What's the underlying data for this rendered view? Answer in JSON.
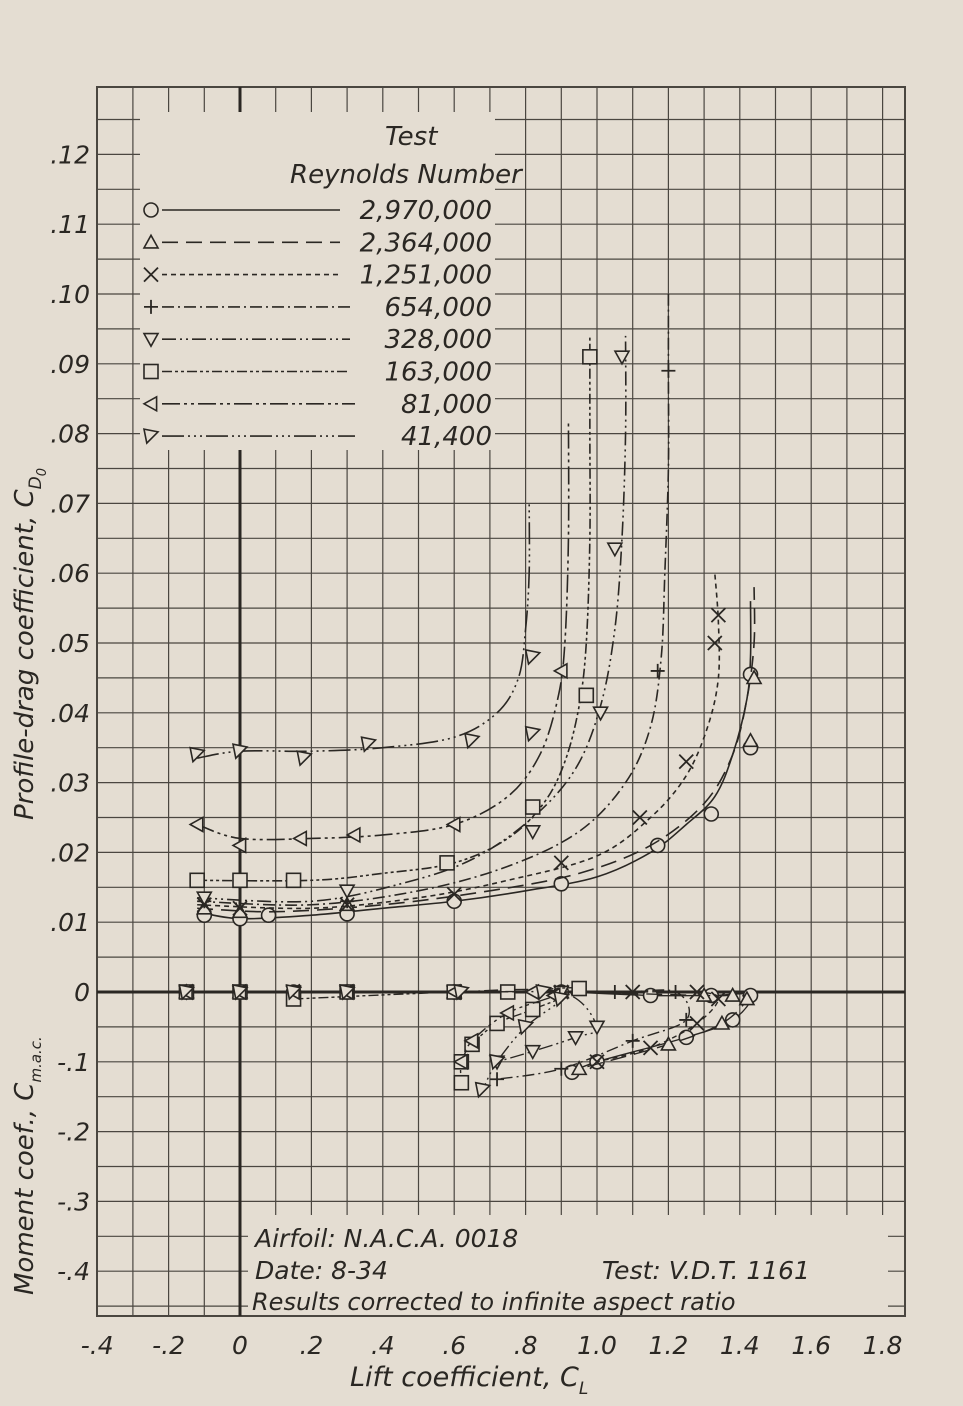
{
  "colors": {
    "paper": "#e4ddd2",
    "grid": "#4a4640",
    "ink": "#2a2723"
  },
  "chart_data": {
    "type": "line",
    "xlabel": "Lift coefficient, C",
    "xlabel_sub": "L",
    "ylabel_drag": "Profile-drag coefficient, C",
    "ylabel_drag_sub": "D",
    "ylabel_drag_sub2": "0",
    "ylabel_moment": "Moment coef., C",
    "ylabel_moment_sub": "m.a.c.",
    "xlim": [
      -0.4,
      1.8
    ],
    "ylim_drag": [
      0,
      0.125
    ],
    "ylim_moment": [
      -0.45,
      0
    ],
    "grid": true,
    "x_ticks": [
      "-.4",
      "-.2",
      "0",
      ".2",
      ".4",
      ".6",
      ".8",
      "1.0",
      "1.2",
      "1.4",
      "1.6",
      "1.8"
    ],
    "y_ticks_drag": [
      ".01",
      ".02",
      ".03",
      ".04",
      ".05",
      ".06",
      ".07",
      ".08",
      ".09",
      ".10",
      ".11",
      ".12"
    ],
    "y_ticks_moment": [
      "0",
      "-.1",
      "-.2",
      "-.3",
      "-.4"
    ],
    "legend": {
      "placement": "top-left",
      "title1": "Test",
      "title2": "Reynolds Number",
      "entries": [
        "2,970,000",
        "2,364,000",
        "1,251,000",
        "654,000",
        "328,000",
        "163,000",
        "81,000",
        "41,400"
      ]
    },
    "annotations": {
      "airfoil": "Airfoil: N.A.C.A. 0018",
      "date": "Date:  8-34",
      "test": "Test: V.D.T. 1161",
      "note": "Results corrected to infinite aspect ratio"
    },
    "series": [
      {
        "name": "2,970,000",
        "marker": "circle",
        "dash": "",
        "drag_curve": [
          [
            -0.12,
            0.0115
          ],
          [
            0,
            0.0105
          ],
          [
            0.2,
            0.011
          ],
          [
            0.4,
            0.012
          ],
          [
            0.6,
            0.013
          ],
          [
            0.8,
            0.0145
          ],
          [
            1.0,
            0.0165
          ],
          [
            1.15,
            0.02
          ],
          [
            1.25,
            0.024
          ],
          [
            1.33,
            0.028
          ],
          [
            1.38,
            0.034
          ],
          [
            1.42,
            0.042
          ],
          [
            1.43,
            0.048
          ],
          [
            1.43,
            0.056
          ]
        ],
        "drag_points": [
          [
            -0.1,
            0.011
          ],
          [
            0,
            0.0105
          ],
          [
            0.08,
            0.011
          ],
          [
            0.3,
            0.0112
          ],
          [
            0.6,
            0.013
          ],
          [
            0.9,
            0.0155
          ],
          [
            1.17,
            0.021
          ],
          [
            1.32,
            0.0255
          ],
          [
            1.43,
            0.035
          ],
          [
            1.43,
            0.0455
          ]
        ],
        "moment_points": [
          [
            -0.15,
            0
          ],
          [
            0,
            0
          ],
          [
            0.15,
            0
          ],
          [
            0.3,
            0
          ],
          [
            0.6,
            0
          ],
          [
            0.9,
            0
          ],
          [
            1.15,
            -0.005
          ],
          [
            1.32,
            -0.005
          ],
          [
            1.43,
            -0.005
          ],
          [
            1.38,
            -0.04
          ],
          [
            1.25,
            -0.065
          ],
          [
            1.0,
            -0.1
          ],
          [
            0.93,
            -0.115
          ]
        ]
      },
      {
        "name": "2,364,000",
        "marker": "triangle-up",
        "dash": "16 8",
        "drag_curve": [
          [
            -0.12,
            0.012
          ],
          [
            0.1,
            0.0115
          ],
          [
            0.4,
            0.0125
          ],
          [
            0.7,
            0.0145
          ],
          [
            0.95,
            0.017
          ],
          [
            1.15,
            0.021
          ],
          [
            1.3,
            0.027
          ],
          [
            1.38,
            0.034
          ],
          [
            1.42,
            0.042
          ],
          [
            1.44,
            0.05
          ],
          [
            1.44,
            0.058
          ]
        ],
        "drag_points": [
          [
            -0.1,
            0.012
          ],
          [
            0,
            0.0115
          ],
          [
            0.3,
            0.0125
          ],
          [
            1.43,
            0.036
          ],
          [
            1.44,
            0.045
          ]
        ],
        "moment_points": [
          [
            -0.15,
            0
          ],
          [
            0,
            0
          ],
          [
            0.3,
            0
          ],
          [
            0.6,
            0
          ],
          [
            0.9,
            0
          ],
          [
            1.3,
            -0.005
          ],
          [
            1.38,
            -0.005
          ],
          [
            1.42,
            -0.01
          ],
          [
            1.35,
            -0.045
          ],
          [
            1.2,
            -0.075
          ],
          [
            0.95,
            -0.11
          ]
        ]
      },
      {
        "name": "1,251,000",
        "marker": "cross",
        "dash": "5 4",
        "drag_curve": [
          [
            -0.12,
            0.0125
          ],
          [
            0.2,
            0.012
          ],
          [
            0.5,
            0.0135
          ],
          [
            0.75,
            0.016
          ],
          [
            1.0,
            0.0195
          ],
          [
            1.15,
            0.025
          ],
          [
            1.25,
            0.031
          ],
          [
            1.31,
            0.038
          ],
          [
            1.34,
            0.045
          ],
          [
            1.34,
            0.053
          ],
          [
            1.33,
            0.06
          ]
        ],
        "drag_points": [
          [
            -0.1,
            0.0125
          ],
          [
            0.0,
            0.012
          ],
          [
            0.3,
            0.0125
          ],
          [
            0.6,
            0.014
          ],
          [
            0.9,
            0.0185
          ],
          [
            1.12,
            0.025
          ],
          [
            1.25,
            0.033
          ],
          [
            1.33,
            0.05
          ],
          [
            1.34,
            0.054
          ]
        ],
        "moment_points": [
          [
            -0.15,
            0
          ],
          [
            0,
            0
          ],
          [
            0.15,
            0
          ],
          [
            0.3,
            0
          ],
          [
            0.6,
            0
          ],
          [
            0.9,
            0
          ],
          [
            1.1,
            0
          ],
          [
            1.28,
            0
          ],
          [
            1.34,
            -0.01
          ],
          [
            1.28,
            -0.045
          ],
          [
            1.15,
            -0.08
          ],
          [
            1.0,
            -0.1
          ]
        ]
      },
      {
        "name": "654,000",
        "marker": "plus",
        "dash": "12 4 2 4",
        "drag_curve": [
          [
            -0.12,
            0.013
          ],
          [
            0.2,
            0.0125
          ],
          [
            0.5,
            0.0145
          ],
          [
            0.75,
            0.018
          ],
          [
            0.95,
            0.023
          ],
          [
            1.08,
            0.03
          ],
          [
            1.15,
            0.038
          ],
          [
            1.18,
            0.048
          ],
          [
            1.19,
            0.06
          ],
          [
            1.2,
            0.075
          ],
          [
            1.2,
            0.089
          ],
          [
            1.2,
            0.1
          ]
        ],
        "drag_points": [
          [
            -0.1,
            0.013
          ],
          [
            0.3,
            0.013
          ],
          [
            1.17,
            0.046
          ],
          [
            1.2,
            0.089
          ]
        ],
        "moment_points": [
          [
            -0.15,
            0
          ],
          [
            0,
            0
          ],
          [
            0.3,
            0
          ],
          [
            0.6,
            0
          ],
          [
            1.05,
            0
          ],
          [
            1.22,
            0
          ],
          [
            1.25,
            -0.04
          ],
          [
            1.1,
            -0.07
          ],
          [
            0.9,
            -0.11
          ],
          [
            0.72,
            -0.125
          ]
        ]
      },
      {
        "name": "328,000",
        "marker": "triangle-down",
        "dash": "14 4 2 4 2 4",
        "drag_curve": [
          [
            -0.12,
            0.0135
          ],
          [
            0.2,
            0.013
          ],
          [
            0.45,
            0.0155
          ],
          [
            0.65,
            0.019
          ],
          [
            0.82,
            0.025
          ],
          [
            0.94,
            0.032
          ],
          [
            1.01,
            0.041
          ],
          [
            1.05,
            0.052
          ],
          [
            1.07,
            0.065
          ],
          [
            1.08,
            0.08
          ],
          [
            1.08,
            0.094
          ]
        ],
        "drag_points": [
          [
            -0.1,
            0.0135
          ],
          [
            0.3,
            0.0145
          ],
          [
            0.82,
            0.023
          ],
          [
            1.01,
            0.04
          ],
          [
            1.05,
            0.0635
          ],
          [
            1.07,
            0.091
          ]
        ],
        "moment_points": [
          [
            -0.15,
            0
          ],
          [
            0,
            0
          ],
          [
            0.15,
            0
          ],
          [
            0.3,
            0
          ],
          [
            0.6,
            0
          ],
          [
            0.9,
            0
          ],
          [
            1.0,
            -0.05
          ],
          [
            0.94,
            -0.065
          ],
          [
            0.82,
            -0.085
          ],
          [
            0.72,
            -0.1
          ]
        ]
      },
      {
        "name": "163,000",
        "marker": "square",
        "dash": "10 3 3 3 3 3",
        "drag_curve": [
          [
            -0.12,
            0.016
          ],
          [
            0.2,
            0.016
          ],
          [
            0.4,
            0.017
          ],
          [
            0.6,
            0.0185
          ],
          [
            0.75,
            0.022
          ],
          [
            0.85,
            0.027
          ],
          [
            0.91,
            0.033
          ],
          [
            0.95,
            0.041
          ],
          [
            0.97,
            0.05
          ],
          [
            0.98,
            0.065
          ],
          [
            0.98,
            0.08
          ],
          [
            0.98,
            0.094
          ]
        ],
        "drag_points": [
          [
            -0.12,
            0.016
          ],
          [
            0,
            0.016
          ],
          [
            0.15,
            0.016
          ],
          [
            0.58,
            0.0185
          ],
          [
            0.82,
            0.0265
          ],
          [
            0.97,
            0.0425
          ],
          [
            0.98,
            0.091
          ]
        ],
        "moment_points": [
          [
            -0.15,
            0
          ],
          [
            0,
            0
          ],
          [
            0.15,
            -0.01
          ],
          [
            0.3,
            0
          ],
          [
            0.6,
            0
          ],
          [
            0.75,
            0
          ],
          [
            0.95,
            0.005
          ],
          [
            0.82,
            -0.025
          ],
          [
            0.72,
            -0.045
          ],
          [
            0.65,
            -0.075
          ],
          [
            0.62,
            -0.1
          ],
          [
            0.62,
            -0.13
          ]
        ]
      },
      {
        "name": "81,000",
        "marker": "triangle-left",
        "dash": "18 4 3 4 3 4",
        "drag_curve": [
          [
            -0.12,
            0.024
          ],
          [
            0,
            0.022
          ],
          [
            0.2,
            0.022
          ],
          [
            0.4,
            0.0225
          ],
          [
            0.6,
            0.024
          ],
          [
            0.75,
            0.028
          ],
          [
            0.84,
            0.034
          ],
          [
            0.89,
            0.042
          ],
          [
            0.91,
            0.05
          ],
          [
            0.92,
            0.065
          ],
          [
            0.92,
            0.082
          ]
        ],
        "drag_points": [
          [
            -0.12,
            0.024
          ],
          [
            0.0,
            0.021
          ],
          [
            0.17,
            0.022
          ],
          [
            0.32,
            0.0225
          ],
          [
            0.6,
            0.024
          ],
          [
            0.9,
            0.046
          ]
        ],
        "moment_points": [
          [
            -0.15,
            0
          ],
          [
            0,
            0
          ],
          [
            0.15,
            0
          ],
          [
            0.3,
            0
          ],
          [
            0.6,
            0
          ],
          [
            0.82,
            0
          ],
          [
            0.88,
            -0.005
          ],
          [
            0.75,
            -0.03
          ],
          [
            0.65,
            -0.07
          ],
          [
            0.62,
            -0.1
          ]
        ]
      },
      {
        "name": "41,400",
        "marker": "triangle-down-right",
        "dash": "22 4 2 4 2 4 2 4",
        "drag_curve": [
          [
            -0.12,
            0.0335
          ],
          [
            0,
            0.0345
          ],
          [
            0.2,
            0.0345
          ],
          [
            0.4,
            0.035
          ],
          [
            0.6,
            0.0365
          ],
          [
            0.72,
            0.04
          ],
          [
            0.78,
            0.045
          ],
          [
            0.8,
            0.052
          ],
          [
            0.81,
            0.06
          ],
          [
            0.81,
            0.07
          ]
        ],
        "drag_points": [
          [
            -0.12,
            0.034
          ],
          [
            0,
            0.0345
          ],
          [
            0.18,
            0.0335
          ],
          [
            0.36,
            0.0355
          ],
          [
            0.65,
            0.036
          ],
          [
            0.82,
            0.037
          ],
          [
            0.82,
            0.048
          ]
        ],
        "moment_points": [
          [
            -0.15,
            0
          ],
          [
            0,
            0
          ],
          [
            0.15,
            0
          ],
          [
            0.3,
            0
          ],
          [
            0.62,
            0
          ],
          [
            0.85,
            0
          ],
          [
            0.9,
            -0.01
          ],
          [
            0.8,
            -0.05
          ],
          [
            0.72,
            -0.1
          ],
          [
            0.68,
            -0.14
          ]
        ]
      }
    ]
  }
}
